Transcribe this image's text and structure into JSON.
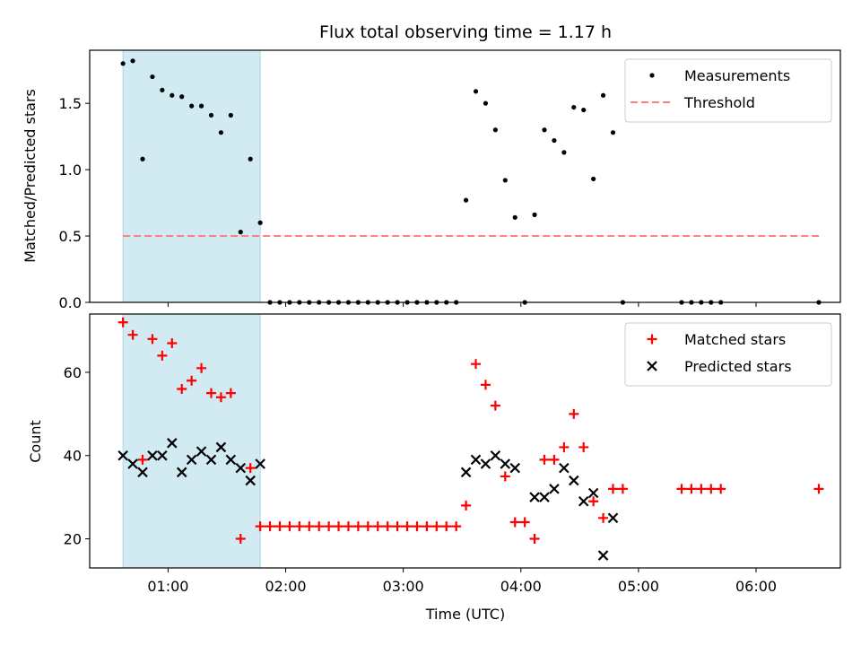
{
  "chart_data": [
    {
      "type": "scatter",
      "title": "Flux total observing time = 1.17 h",
      "xlabel": "",
      "ylabel": "Matched/Predicted stars",
      "xlim": [
        "00:20",
        "06:43"
      ],
      "ylim": [
        0,
        1.9
      ],
      "yticks": [
        0.0,
        0.5,
        1.0,
        1.5
      ],
      "ytick_labels": [
        "0.0",
        "0.5",
        "1.0",
        "1.5"
      ],
      "xticks": [
        "01:00",
        "02:00",
        "03:00",
        "04:00",
        "05:00",
        "06:00"
      ],
      "shaded_interval": [
        "00:37",
        "01:47"
      ],
      "legend_position": "upper right",
      "series": [
        {
          "name": "Measurements",
          "style": "point",
          "color": "#000000",
          "points": [
            [
              "00:37",
              1.8
            ],
            [
              "00:42",
              1.82
            ],
            [
              "00:47",
              1.08
            ],
            [
              "00:52",
              1.7
            ],
            [
              "00:57",
              1.6
            ],
            [
              "01:02",
              1.56
            ],
            [
              "01:07",
              1.55
            ],
            [
              "01:12",
              1.48
            ],
            [
              "01:17",
              1.48
            ],
            [
              "01:22",
              1.41
            ],
            [
              "01:27",
              1.28
            ],
            [
              "01:32",
              1.41
            ],
            [
              "01:37",
              0.53
            ],
            [
              "01:42",
              1.08
            ],
            [
              "01:47",
              0.6
            ],
            [
              "01:52",
              0.0
            ],
            [
              "01:57",
              0.0
            ],
            [
              "02:02",
              0.0
            ],
            [
              "02:07",
              0.0
            ],
            [
              "02:12",
              0.0
            ],
            [
              "02:17",
              0.0
            ],
            [
              "02:22",
              0.0
            ],
            [
              "02:27",
              0.0
            ],
            [
              "02:32",
              0.0
            ],
            [
              "02:37",
              0.0
            ],
            [
              "02:42",
              0.0
            ],
            [
              "02:47",
              0.0
            ],
            [
              "02:52",
              0.0
            ],
            [
              "02:57",
              0.0
            ],
            [
              "03:02",
              0.0
            ],
            [
              "03:07",
              0.0
            ],
            [
              "03:12",
              0.0
            ],
            [
              "03:17",
              0.0
            ],
            [
              "03:22",
              0.0
            ],
            [
              "03:27",
              0.0
            ],
            [
              "03:32",
              0.77
            ],
            [
              "03:37",
              1.59
            ],
            [
              "03:42",
              1.5
            ],
            [
              "03:47",
              1.3
            ],
            [
              "03:52",
              0.92
            ],
            [
              "03:57",
              0.64
            ],
            [
              "04:02",
              0.0
            ],
            [
              "04:07",
              0.66
            ],
            [
              "04:12",
              1.3
            ],
            [
              "04:17",
              1.22
            ],
            [
              "04:22",
              1.13
            ],
            [
              "04:27",
              1.47
            ],
            [
              "04:32",
              1.45
            ],
            [
              "04:37",
              0.93
            ],
            [
              "04:42",
              1.56
            ],
            [
              "04:47",
              1.28
            ],
            [
              "04:52",
              0.0
            ],
            [
              "05:22",
              0.0
            ],
            [
              "05:27",
              0.0
            ],
            [
              "05:32",
              0.0
            ],
            [
              "05:37",
              0.0
            ],
            [
              "05:42",
              0.0
            ],
            [
              "06:32",
              0.0
            ]
          ]
        },
        {
          "name": "Threshold",
          "style": "dashed-line",
          "color": "#ff7f7f",
          "points": [
            [
              "00:37",
              0.5
            ],
            [
              "06:32",
              0.5
            ]
          ]
        }
      ]
    },
    {
      "type": "scatter",
      "title": "",
      "xlabel": "Time (UTC)",
      "ylabel": "Count",
      "xlim": [
        "00:20",
        "06:43"
      ],
      "ylim": [
        13,
        74
      ],
      "yticks": [
        20,
        40,
        60
      ],
      "ytick_labels": [
        "20",
        "40",
        "60"
      ],
      "xticks": [
        "01:00",
        "02:00",
        "03:00",
        "04:00",
        "05:00",
        "06:00"
      ],
      "shaded_interval": [
        "00:37",
        "01:47"
      ],
      "legend_position": "upper right",
      "series": [
        {
          "name": "Matched stars",
          "style": "plus",
          "color": "#ff0000",
          "points": [
            [
              "00:37",
              72
            ],
            [
              "00:42",
              69
            ],
            [
              "00:47",
              39
            ],
            [
              "00:52",
              68
            ],
            [
              "00:57",
              64
            ],
            [
              "01:02",
              67
            ],
            [
              "01:07",
              56
            ],
            [
              "01:12",
              58
            ],
            [
              "01:17",
              61
            ],
            [
              "01:22",
              55
            ],
            [
              "01:27",
              54
            ],
            [
              "01:32",
              55
            ],
            [
              "01:37",
              20
            ],
            [
              "01:42",
              37
            ],
            [
              "01:47",
              23
            ],
            [
              "01:52",
              23
            ],
            [
              "01:57",
              23
            ],
            [
              "02:02",
              23
            ],
            [
              "02:07",
              23
            ],
            [
              "02:12",
              23
            ],
            [
              "02:17",
              23
            ],
            [
              "02:22",
              23
            ],
            [
              "02:27",
              23
            ],
            [
              "02:32",
              23
            ],
            [
              "02:37",
              23
            ],
            [
              "02:42",
              23
            ],
            [
              "02:47",
              23
            ],
            [
              "02:52",
              23
            ],
            [
              "02:57",
              23
            ],
            [
              "03:02",
              23
            ],
            [
              "03:07",
              23
            ],
            [
              "03:12",
              23
            ],
            [
              "03:17",
              23
            ],
            [
              "03:22",
              23
            ],
            [
              "03:27",
              23
            ],
            [
              "03:32",
              28
            ],
            [
              "03:37",
              62
            ],
            [
              "03:42",
              57
            ],
            [
              "03:47",
              52
            ],
            [
              "03:52",
              35
            ],
            [
              "03:57",
              24
            ],
            [
              "04:02",
              24
            ],
            [
              "04:07",
              20
            ],
            [
              "04:12",
              39
            ],
            [
              "04:17",
              39
            ],
            [
              "04:22",
              42
            ],
            [
              "04:27",
              50
            ],
            [
              "04:32",
              42
            ],
            [
              "04:37",
              29
            ],
            [
              "04:42",
              25
            ],
            [
              "04:47",
              32
            ],
            [
              "04:52",
              32
            ],
            [
              "05:22",
              32
            ],
            [
              "05:27",
              32
            ],
            [
              "05:32",
              32
            ],
            [
              "05:37",
              32
            ],
            [
              "05:42",
              32
            ],
            [
              "06:32",
              32
            ]
          ]
        },
        {
          "name": "Predicted stars",
          "style": "x",
          "color": "#000000",
          "points": [
            [
              "00:37",
              40
            ],
            [
              "00:42",
              38
            ],
            [
              "00:47",
              36
            ],
            [
              "00:52",
              40
            ],
            [
              "00:57",
              40
            ],
            [
              "01:02",
              43
            ],
            [
              "01:07",
              36
            ],
            [
              "01:12",
              39
            ],
            [
              "01:17",
              41
            ],
            [
              "01:22",
              39
            ],
            [
              "01:27",
              42
            ],
            [
              "01:32",
              39
            ],
            [
              "01:37",
              37
            ],
            [
              "01:42",
              34
            ],
            [
              "01:47",
              38
            ],
            [
              "03:32",
              36
            ],
            [
              "03:37",
              39
            ],
            [
              "03:42",
              38
            ],
            [
              "03:47",
              40
            ],
            [
              "03:52",
              38
            ],
            [
              "03:57",
              37
            ],
            [
              "04:07",
              30
            ],
            [
              "04:12",
              30
            ],
            [
              "04:17",
              32
            ],
            [
              "04:22",
              37
            ],
            [
              "04:27",
              34
            ],
            [
              "04:32",
              29
            ],
            [
              "04:37",
              31
            ],
            [
              "04:42",
              16
            ],
            [
              "04:47",
              25
            ]
          ]
        }
      ]
    }
  ],
  "colors": {
    "shaded_interval": "#add8e6",
    "matched": "#ff0000",
    "threshold": "#ff7f7f",
    "measurements": "#000000",
    "predicted": "#000000"
  }
}
